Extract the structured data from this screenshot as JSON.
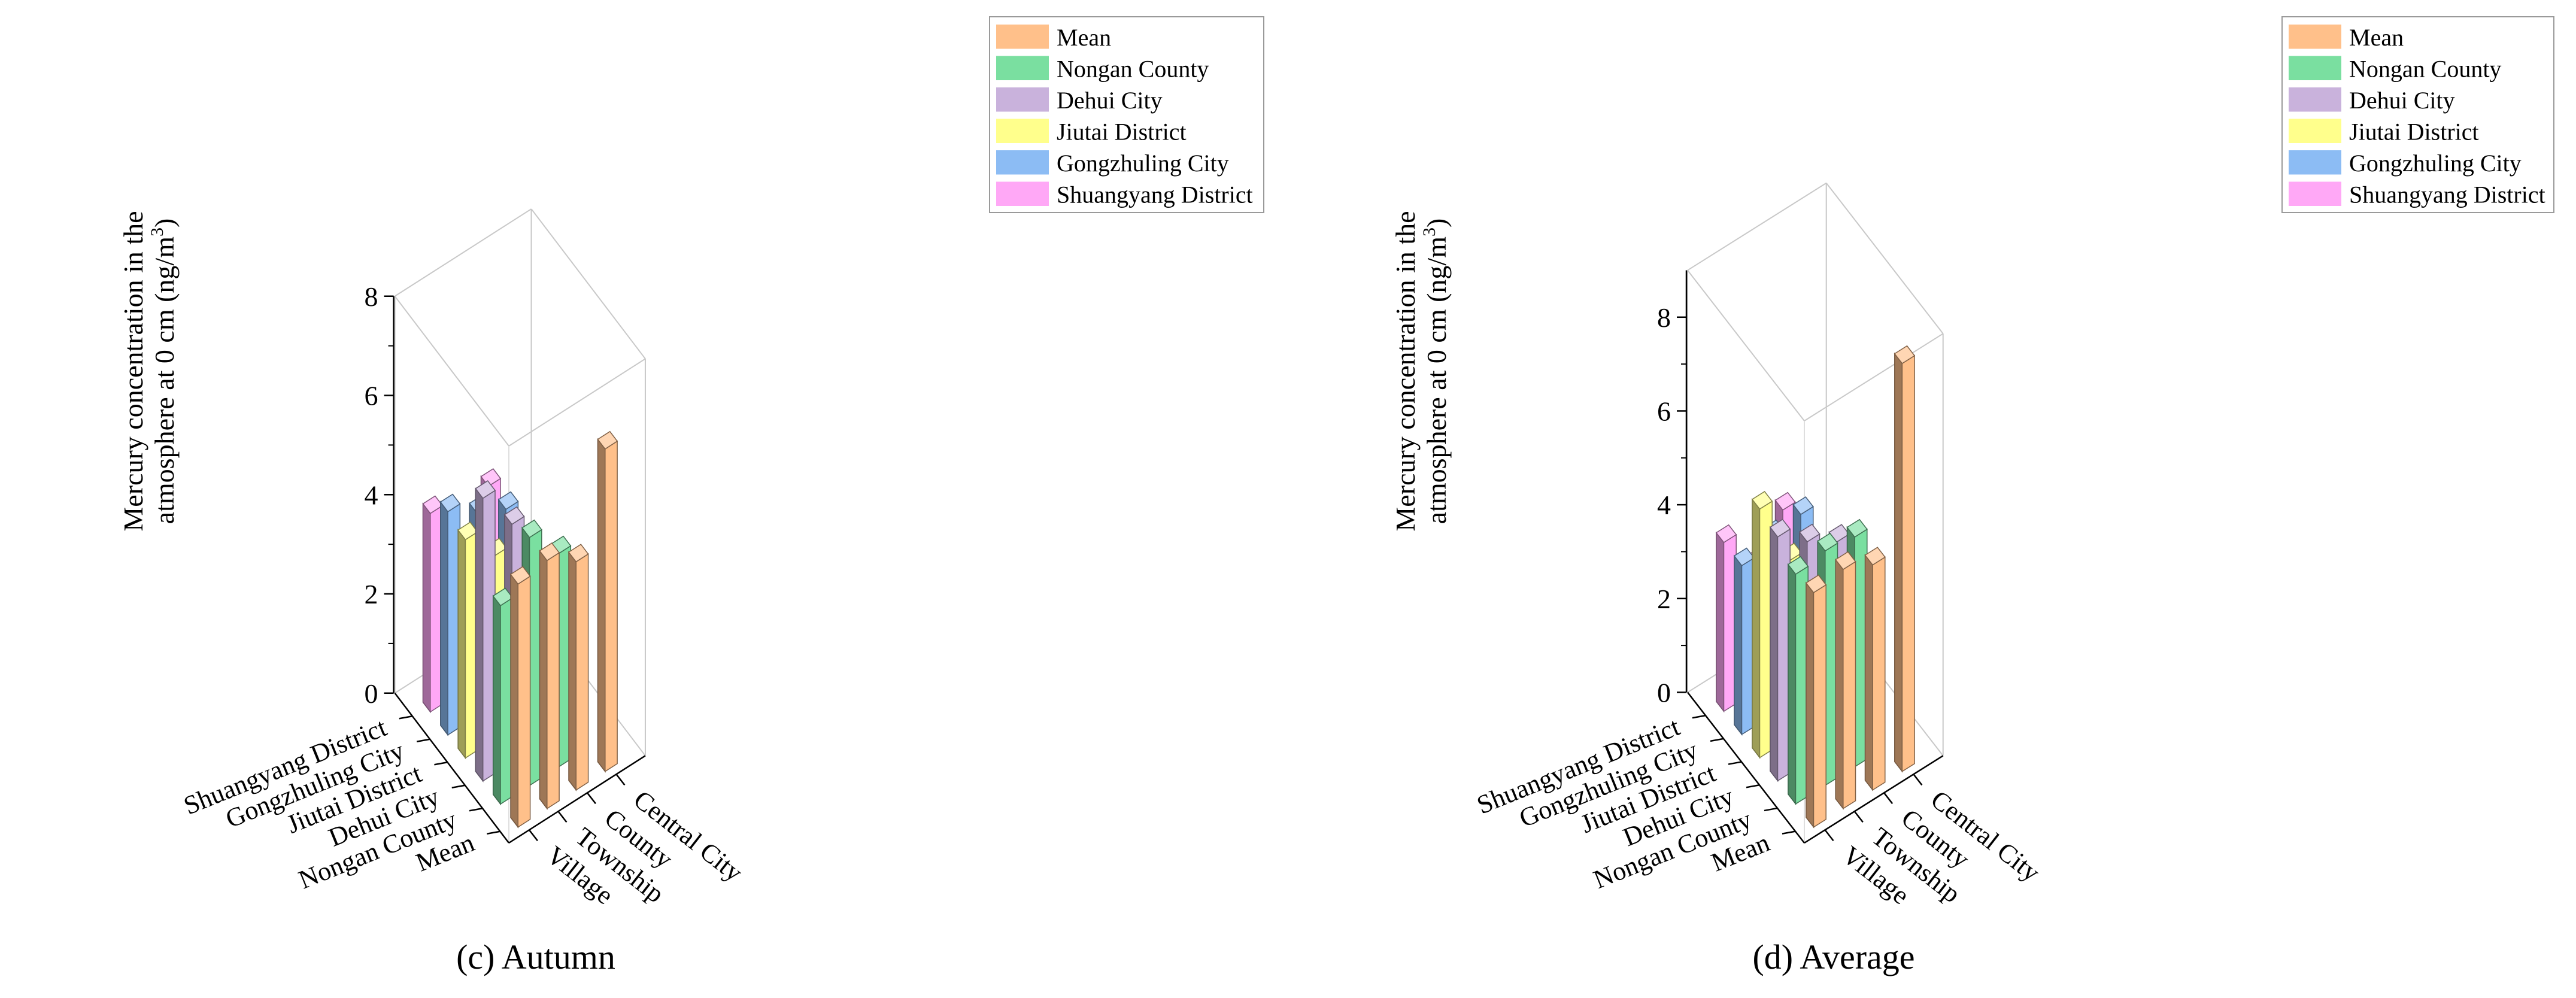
{
  "colors": {
    "Mean": "#FFC08A",
    "Nongan County": "#7ADFA0",
    "Dehui City": "#C9B2DC",
    "Jiutai District": "#FFFF8C",
    "Gongzhuling City": "#8CBCF4",
    "Shuangyang District": "#FFA8F6"
  },
  "chart_data": [
    {
      "type": "bar3d",
      "caption": "(c) Autumn",
      "zlabel_line1": "Mercury concentration in the",
      "zlabel_line2": "atmosphere at 0 cm (ng/m",
      "zlabel_sup": "3",
      "zlabel_end": ")",
      "zlim": [
        0,
        8
      ],
      "zticks": [
        "0",
        "2",
        "4",
        "6",
        "8"
      ],
      "x_categories": [
        "Village",
        "Township",
        "County",
        "Central City"
      ],
      "y_categories": [
        "Mean",
        "Nongan County",
        "Dehui City",
        "Jiutai District",
        "Gongzhuling City",
        "Shuangyang District"
      ],
      "legend": [
        "Mean",
        "Nongan County",
        "Dehui City",
        "Jiutai District",
        "Gongzhuling City",
        "Shuangyang District"
      ],
      "series": [
        {
          "name": "Mean",
          "values": [
            4.9,
            5.0,
            4.6,
            6.5
          ]
        },
        {
          "name": "Nongan County",
          "values": [
            4.0,
            5.0,
            4.3,
            null
          ]
        },
        {
          "name": "Dehui City",
          "values": [
            5.7,
            4.8,
            3.6,
            null
          ]
        },
        {
          "name": "Jiutai District",
          "values": [
            4.4,
            3.7,
            2.5,
            null
          ]
        },
        {
          "name": "Gongzhuling City",
          "values": [
            4.5,
            4.1,
            3.8,
            null
          ]
        },
        {
          "name": "Shuangyang District",
          "values": [
            4.0,
            2.8,
            3.8,
            null
          ]
        }
      ]
    },
    {
      "type": "bar3d",
      "caption": "(d) Average",
      "zlabel_line1": "Mercury concentration in the",
      "zlabel_line2": "atmosphere at 0 cm (ng/m",
      "zlabel_sup": "3",
      "zlabel_end": ")",
      "zlim": [
        0,
        9
      ],
      "zticks": [
        "0",
        "2",
        "4",
        "6",
        "8"
      ],
      "x_categories": [
        "Village",
        "Township",
        "County",
        "Central City"
      ],
      "y_categories": [
        "Mean",
        "Nongan County",
        "Dehui City",
        "Jiutai District",
        "Gongzhuling City",
        "Shuangyang District"
      ],
      "legend": [
        "Mean",
        "Nongan County",
        "Dehui City",
        "Jiutai District",
        "Gongzhuling City",
        "Shuangyang District"
      ],
      "series": [
        {
          "name": "Mean",
          "values": [
            5.0,
            5.1,
            4.8,
            8.7
          ]
        },
        {
          "name": "Nongan County",
          "values": [
            4.9,
            5.0,
            4.9,
            null
          ]
        },
        {
          "name": "Dehui City",
          "values": [
            5.2,
            4.7,
            4.3,
            null
          ]
        },
        {
          "name": "Jiutai District",
          "values": [
            5.3,
            3.8,
            3.5,
            null
          ]
        },
        {
          "name": "Gongzhuling City",
          "values": [
            3.6,
            3.8,
            3.9,
            null
          ]
        },
        {
          "name": "Shuangyang District",
          "values": [
            3.6,
            2.7,
            3.5,
            null
          ]
        }
      ]
    }
  ]
}
